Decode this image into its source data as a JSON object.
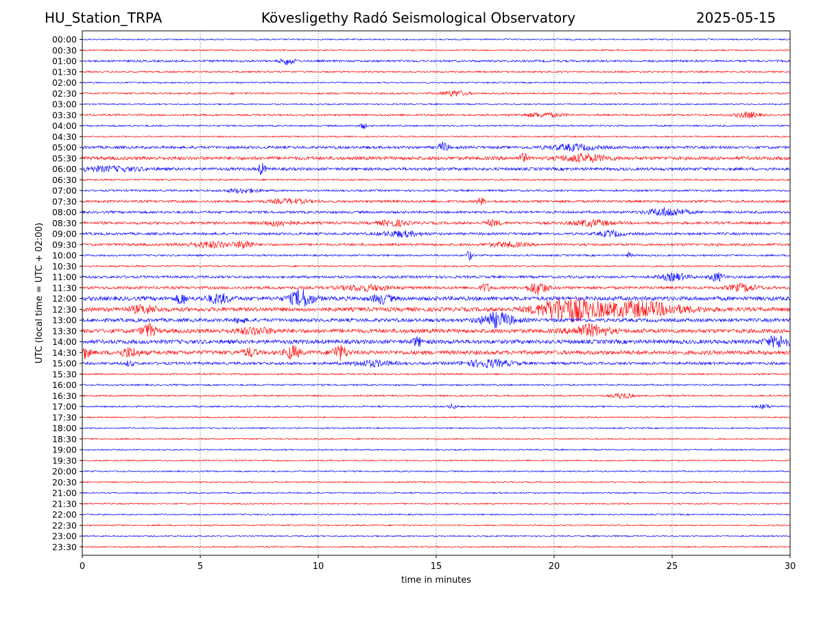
{
  "header": {
    "station": "HU_Station_TRPA",
    "observatory": "Kövesligethy Radó Seismological Observatory",
    "date": "2025-05-15"
  },
  "chart_data": {
    "type": "line",
    "title": "Kövesligethy Radó Seismological Observatory",
    "xlabel": "time in minutes",
    "ylabel": "UTC (local time = UTC + 02:00)",
    "xlim": [
      0,
      30
    ],
    "x_ticks": [
      0,
      5,
      10,
      15,
      20,
      25,
      30
    ],
    "grid": "vertical dotted lines at 5-minute intervals",
    "row_labels": [
      "00:00",
      "00:30",
      "01:00",
      "01:30",
      "02:00",
      "02:30",
      "03:00",
      "03:30",
      "04:00",
      "04:30",
      "05:00",
      "05:30",
      "06:00",
      "06:30",
      "07:00",
      "07:30",
      "08:00",
      "08:30",
      "09:00",
      "09:30",
      "10:00",
      "10:30",
      "11:00",
      "11:30",
      "12:00",
      "12:30",
      "13:00",
      "13:30",
      "14:00",
      "14:30",
      "15:00",
      "15:30",
      "16:00",
      "16:30",
      "17:00",
      "17:30",
      "18:00",
      "18:30",
      "19:00",
      "19:30",
      "20:00",
      "20:30",
      "21:00",
      "21:30",
      "22:00",
      "22:30",
      "23:00",
      "23:30"
    ],
    "trace_colors": [
      "#0000ff",
      "#ff0000"
    ],
    "color_rule": "rows alternate blue (on the hour) and red (on the half hour)",
    "noise_level": [
      1,
      1,
      1.5,
      1.2,
      1,
      1.3,
      1,
      1.4,
      1.2,
      1,
      2,
      2.5,
      2.2,
      1.2,
      1.4,
      1.8,
      1.8,
      2,
      1.8,
      1.8,
      1.3,
      1.2,
      1.8,
      2,
      3,
      3,
      2.6,
      3,
      3,
      3,
      2,
      1.2,
      1.2,
      1.2,
      1.1,
      1,
      1,
      1,
      1,
      1,
      1,
      1,
      1,
      1,
      1,
      1,
      1,
      1
    ],
    "events": [
      {
        "row": "01:00",
        "minute": 8.7,
        "amp": 5,
        "width": 0.3
      },
      {
        "row": "02:30",
        "minute": 15.8,
        "amp": 4,
        "width": 0.5
      },
      {
        "row": "03:30",
        "minute": 19.5,
        "amp": 3,
        "width": 0.8
      },
      {
        "row": "03:30",
        "minute": 28.2,
        "amp": 4,
        "width": 0.5
      },
      {
        "row": "04:00",
        "minute": 11.9,
        "amp": 4,
        "width": 0.15
      },
      {
        "row": "05:00",
        "minute": 15.3,
        "amp": 7,
        "width": 0.2
      },
      {
        "row": "05:00",
        "minute": 20.8,
        "amp": 4,
        "width": 1.0
      },
      {
        "row": "05:30",
        "minute": 18.7,
        "amp": 6,
        "width": 0.15
      },
      {
        "row": "05:30",
        "minute": 21.3,
        "amp": 5,
        "width": 1.0
      },
      {
        "row": "06:00",
        "minute": 7.6,
        "amp": 8,
        "width": 0.15
      },
      {
        "row": "06:00",
        "minute": 1.0,
        "amp": 3,
        "width": 1.5
      },
      {
        "row": "07:00",
        "minute": 6.8,
        "amp": 3,
        "width": 0.7
      },
      {
        "row": "07:30",
        "minute": 16.9,
        "amp": 5,
        "width": 0.15
      },
      {
        "row": "07:30",
        "minute": 8.8,
        "amp": 3,
        "width": 0.8
      },
      {
        "row": "08:00",
        "minute": 24.8,
        "amp": 6,
        "width": 0.8
      },
      {
        "row": "08:30",
        "minute": 8.3,
        "amp": 4,
        "width": 0.6
      },
      {
        "row": "08:30",
        "minute": 13.2,
        "amp": 4,
        "width": 0.6
      },
      {
        "row": "08:30",
        "minute": 17.4,
        "amp": 4,
        "width": 0.3
      },
      {
        "row": "08:30",
        "minute": 21.6,
        "amp": 4,
        "width": 0.8
      },
      {
        "row": "09:00",
        "minute": 13.5,
        "amp": 4,
        "width": 0.8
      },
      {
        "row": "09:00",
        "minute": 22.4,
        "amp": 4,
        "width": 0.5
      },
      {
        "row": "09:30",
        "minute": 6.9,
        "amp": 6,
        "width": 0.3
      },
      {
        "row": "09:30",
        "minute": 5.5,
        "amp": 4,
        "width": 1.0
      },
      {
        "row": "09:30",
        "minute": 18.0,
        "amp": 3,
        "width": 0.8
      },
      {
        "row": "10:00",
        "minute": 16.4,
        "amp": 8,
        "width": 0.1
      },
      {
        "row": "10:00",
        "minute": 23.2,
        "amp": 5,
        "width": 0.1
      },
      {
        "row": "11:00",
        "minute": 26.9,
        "amp": 6,
        "width": 0.3
      },
      {
        "row": "11:00",
        "minute": 25.1,
        "amp": 5,
        "width": 0.6
      },
      {
        "row": "11:30",
        "minute": 19.3,
        "amp": 9,
        "width": 0.4
      },
      {
        "row": "11:30",
        "minute": 17.1,
        "amp": 6,
        "width": 0.2
      },
      {
        "row": "11:30",
        "minute": 12.0,
        "amp": 4,
        "width": 1.0
      },
      {
        "row": "11:30",
        "minute": 28.0,
        "amp": 5,
        "width": 0.6
      },
      {
        "row": "12:00",
        "minute": 9.3,
        "amp": 12,
        "width": 0.5
      },
      {
        "row": "12:00",
        "minute": 4.2,
        "amp": 8,
        "width": 0.2
      },
      {
        "row": "12:00",
        "minute": 5.8,
        "amp": 6,
        "width": 0.5
      },
      {
        "row": "12:00",
        "minute": 12.7,
        "amp": 6,
        "width": 0.4
      },
      {
        "row": "12:30",
        "minute": 20.5,
        "amp": 16,
        "width": 1.2
      },
      {
        "row": "12:30",
        "minute": 23.5,
        "amp": 10,
        "width": 2.0
      },
      {
        "row": "12:30",
        "minute": 2.6,
        "amp": 5,
        "width": 0.6
      },
      {
        "row": "13:00",
        "minute": 17.6,
        "amp": 10,
        "width": 0.7
      },
      {
        "row": "13:00",
        "minute": 6.7,
        "amp": 4,
        "width": 0.2
      },
      {
        "row": "13:30",
        "minute": 2.8,
        "amp": 9,
        "width": 0.3
      },
      {
        "row": "13:30",
        "minute": 21.5,
        "amp": 8,
        "width": 0.8
      },
      {
        "row": "13:30",
        "minute": 7.3,
        "amp": 4,
        "width": 0.8
      },
      {
        "row": "14:00",
        "minute": 29.5,
        "amp": 8,
        "width": 0.5
      },
      {
        "row": "14:00",
        "minute": 14.2,
        "amp": 6,
        "width": 0.2
      },
      {
        "row": "14:30",
        "minute": 0.1,
        "amp": 8,
        "width": 0.2
      },
      {
        "row": "14:30",
        "minute": 2.0,
        "amp": 6,
        "width": 0.4
      },
      {
        "row": "14:30",
        "minute": 8.9,
        "amp": 9,
        "width": 0.3
      },
      {
        "row": "14:30",
        "minute": 10.9,
        "amp": 10,
        "width": 0.3
      },
      {
        "row": "14:30",
        "minute": 7.1,
        "amp": 5,
        "width": 0.3
      },
      {
        "row": "15:00",
        "minute": 12.3,
        "amp": 4,
        "width": 0.8
      },
      {
        "row": "15:00",
        "minute": 17.2,
        "amp": 5,
        "width": 1.0
      },
      {
        "row": "15:00",
        "minute": 2.0,
        "amp": 4,
        "width": 0.15
      },
      {
        "row": "16:30",
        "minute": 22.9,
        "amp": 4,
        "width": 0.4
      },
      {
        "row": "17:00",
        "minute": 15.7,
        "amp": 4,
        "width": 0.15
      },
      {
        "row": "17:00",
        "minute": 28.9,
        "amp": 3,
        "width": 0.3
      }
    ]
  }
}
